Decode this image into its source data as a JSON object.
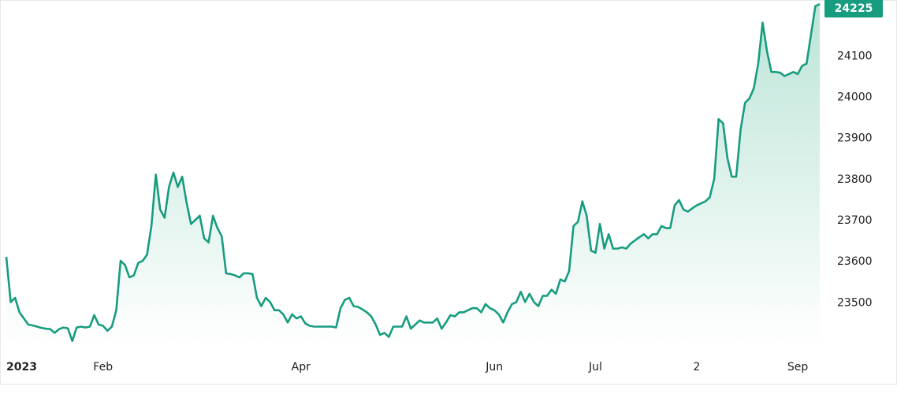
{
  "chart_data": {
    "type": "area",
    "title": "",
    "xlabel": "",
    "ylabel": "",
    "ylim": [
      23395,
      24235
    ],
    "y_ticks": [
      23500,
      23600,
      23700,
      23800,
      23900,
      24000,
      24100
    ],
    "x_ticks": [
      {
        "label": "2023",
        "x": 0
      },
      {
        "label": "Feb",
        "x": 22
      },
      {
        "label": "Apr",
        "x": 67
      },
      {
        "label": "Jun",
        "x": 111
      },
      {
        "label": "Jul",
        "x": 134
      },
      {
        "label": "2",
        "x": 157
      },
      {
        "label": "Sep",
        "x": 180
      }
    ],
    "last_value": "24225",
    "colors": {
      "line": "#179c7f",
      "badge": "#179c7f",
      "fill_top": "#b9e3d6",
      "axis_text": "#222222",
      "border": "#e8e8e8"
    },
    "grid": false,
    "series": [
      {
        "values": [
          23610,
          23500,
          23510,
          23475,
          23460,
          23445,
          23443,
          23440,
          23437,
          23435,
          23434,
          23425,
          23434,
          23438,
          23436,
          23405,
          23438,
          23440,
          23438,
          23440,
          23468,
          23445,
          23442,
          23430,
          23440,
          23480,
          23600,
          23590,
          23560,
          23565,
          23595,
          23600,
          23615,
          23685,
          23810,
          23725,
          23705,
          23780,
          23815,
          23780,
          23805,
          23742,
          23690,
          23700,
          23710,
          23655,
          23645,
          23710,
          23680,
          23660,
          23570,
          23568,
          23565,
          23560,
          23570,
          23570,
          23568,
          23510,
          23490,
          23510,
          23500,
          23480,
          23480,
          23470,
          23450,
          23470,
          23460,
          23465,
          23448,
          23442,
          23440,
          23440,
          23440,
          23440,
          23440,
          23438,
          23485,
          23505,
          23510,
          23490,
          23488,
          23482,
          23475,
          23465,
          23445,
          23420,
          23425,
          23415,
          23440,
          23440,
          23440,
          23465,
          23435,
          23445,
          23455,
          23450,
          23450,
          23450,
          23460,
          23435,
          23450,
          23468,
          23465,
          23475,
          23475,
          23480,
          23485,
          23485,
          23475,
          23495,
          23485,
          23480,
          23470,
          23450,
          23475,
          23495,
          23500,
          23525,
          23500,
          23520,
          23500,
          23490,
          23515,
          23515,
          23530,
          23520,
          23555,
          23550,
          23575,
          23685,
          23695,
          23745,
          23710,
          23625,
          23620,
          23690,
          23630,
          23665,
          23630,
          23630,
          23633,
          23630,
          23642,
          23650,
          23658,
          23665,
          23655,
          23665,
          23665,
          23685,
          23680,
          23680,
          23735,
          23748,
          23725,
          23720,
          23728,
          23735,
          23740,
          23745,
          23755,
          23800,
          23945,
          23935,
          23850,
          23805,
          23805,
          23920,
          23985,
          23995,
          24020,
          24080,
          24180,
          24110,
          24060,
          24060,
          24058,
          24050,
          24055,
          24060,
          24055,
          24075,
          24080,
          24150,
          24220,
          24225
        ]
      }
    ]
  }
}
